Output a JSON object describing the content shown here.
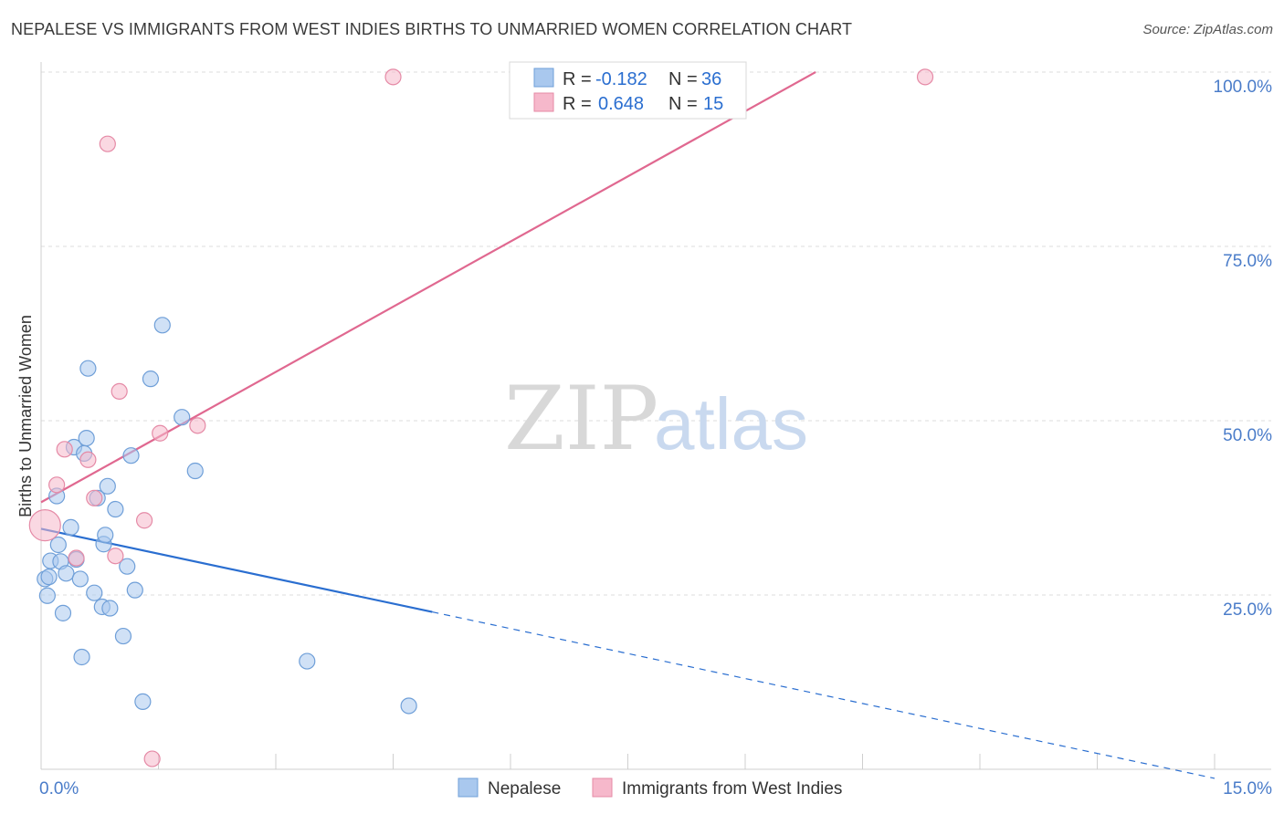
{
  "header": {
    "title": "NEPALESE VS IMMIGRANTS FROM WEST INDIES BIRTHS TO UNMARRIED WOMEN CORRELATION CHART",
    "source": "Source: ZipAtlas.com"
  },
  "watermark": {
    "zip": "ZIP",
    "atlas": "atlas"
  },
  "colors": {
    "nepalese_fill": "#a9c8ee",
    "nepalese_stroke": "#6f9fd8",
    "nepalese_line": "#2a6ed0",
    "westindies_fill": "#f6b8cb",
    "westindies_stroke": "#e58aa6",
    "westindies_line": "#e06890",
    "grid": "#dedede",
    "axis_label": "#4a7cc9"
  },
  "legend": {
    "rows": [
      {
        "r_label": "R =",
        "r_value": "-0.182",
        "n_label": "N =",
        "n_value": "36"
      },
      {
        "r_label": "R =",
        "r_value": "0.648",
        "n_label": "N =",
        "n_value": "15"
      }
    ]
  },
  "bottom_legend": [
    "Nepalese",
    "Immigrants from West Indies"
  ],
  "chart_data": {
    "type": "scatter",
    "title": "NEPALESE VS IMMIGRANTS FROM WEST INDIES BIRTHS TO UNMARRIED WOMEN CORRELATION CHART",
    "xlabel": "",
    "ylabel": "Births to Unmarried Women",
    "xlim": [
      0,
      15
    ],
    "ylim": [
      0,
      100
    ],
    "x_tick_labels": [
      {
        "value": 0,
        "label": "0.0%"
      },
      {
        "value": 15,
        "label": "15.0%"
      }
    ],
    "y_tick_labels": [
      {
        "value": 25,
        "label": "25.0%"
      },
      {
        "value": 50,
        "label": "50.0%"
      },
      {
        "value": 75,
        "label": "75.0%"
      },
      {
        "value": 100,
        "label": "100.0%"
      }
    ],
    "grid": true,
    "legend_position": "top-center",
    "series": [
      {
        "name": "Nepalese",
        "r": -0.182,
        "n": 36,
        "trend": {
          "x0": 0.0,
          "y0": 34.5,
          "x1": 15.0,
          "y1": -1.3,
          "solid_until_x": 5.0
        },
        "points": [
          [
            0.05,
            27.3
          ],
          [
            0.08,
            24.9
          ],
          [
            0.1,
            27.6
          ],
          [
            0.12,
            29.9
          ],
          [
            0.2,
            39.2
          ],
          [
            0.22,
            32.2
          ],
          [
            0.25,
            29.8
          ],
          [
            0.28,
            22.4
          ],
          [
            0.32,
            28.1
          ],
          [
            0.38,
            34.7
          ],
          [
            0.42,
            46.2
          ],
          [
            0.45,
            30.1
          ],
          [
            0.5,
            27.3
          ],
          [
            0.52,
            16.1
          ],
          [
            0.55,
            45.3
          ],
          [
            0.58,
            47.5
          ],
          [
            0.6,
            57.5
          ],
          [
            0.68,
            25.3
          ],
          [
            0.72,
            38.9
          ],
          [
            0.78,
            23.3
          ],
          [
            0.8,
            32.3
          ],
          [
            0.82,
            33.6
          ],
          [
            0.85,
            40.6
          ],
          [
            0.88,
            23.1
          ],
          [
            0.95,
            37.3
          ],
          [
            1.05,
            19.1
          ],
          [
            1.1,
            29.1
          ],
          [
            1.15,
            45.0
          ],
          [
            1.2,
            25.7
          ],
          [
            1.3,
            9.7
          ],
          [
            1.4,
            56.0
          ],
          [
            1.55,
            63.7
          ],
          [
            1.8,
            50.5
          ],
          [
            1.97,
            42.8
          ],
          [
            3.4,
            15.5
          ],
          [
            4.7,
            9.1
          ]
        ]
      },
      {
        "name": "Immigrants from West Indies",
        "r": 0.648,
        "n": 15,
        "trend": {
          "x0": 0.0,
          "y0": 38.3,
          "x1": 9.9,
          "y1": 100.0
        },
        "points": [
          [
            0.05,
            35.0
          ],
          [
            0.2,
            40.8
          ],
          [
            0.3,
            45.9
          ],
          [
            0.45,
            30.3
          ],
          [
            0.6,
            44.4
          ],
          [
            0.68,
            38.9
          ],
          [
            0.85,
            89.7
          ],
          [
            0.95,
            30.6
          ],
          [
            1.0,
            54.2
          ],
          [
            1.32,
            35.7
          ],
          [
            1.42,
            1.5
          ],
          [
            1.52,
            48.2
          ],
          [
            2.0,
            49.3
          ],
          [
            4.5,
            99.3
          ],
          [
            11.3,
            99.3
          ]
        ]
      }
    ]
  }
}
